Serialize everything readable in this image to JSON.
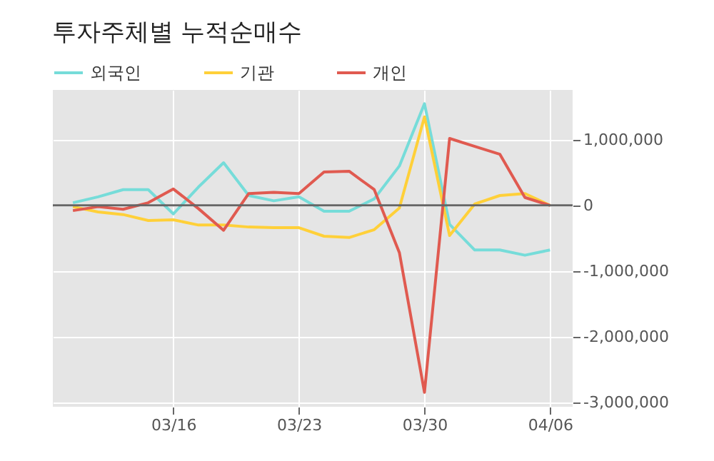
{
  "chart_data": {
    "type": "line",
    "title": "투자주체별 누적순매수",
    "categories": [
      null,
      null,
      null,
      null,
      "03/16",
      null,
      null,
      null,
      null,
      "03/23",
      null,
      null,
      null,
      null,
      "03/30",
      null,
      null,
      null,
      null,
      "04/06"
    ],
    "series": [
      {
        "name": "외국인",
        "color": "#76dcd9",
        "values": [
          40000,
          130000,
          240000,
          240000,
          -130000,
          280000,
          650000,
          150000,
          70000,
          130000,
          -90000,
          -90000,
          100000,
          600000,
          1550000,
          -290000,
          -680000,
          -680000,
          -760000,
          -680000
        ]
      },
      {
        "name": "기관",
        "color": "#ffd039",
        "values": [
          -20000,
          -100000,
          -140000,
          -230000,
          -220000,
          -300000,
          -300000,
          -330000,
          -340000,
          -340000,
          -470000,
          -490000,
          -370000,
          -40000,
          1350000,
          -460000,
          20000,
          150000,
          180000,
          0
        ]
      },
      {
        "name": "개인",
        "color": "#e05a50",
        "values": [
          -80000,
          -20000,
          -60000,
          40000,
          250000,
          -50000,
          -380000,
          180000,
          200000,
          180000,
          510000,
          520000,
          240000,
          -720000,
          -2850000,
          1020000,
          900000,
          780000,
          120000,
          0
        ]
      }
    ],
    "ylim": [
      -3070000,
      1760000
    ],
    "yticks": [
      {
        "value": 1000000,
        "label": "1,000,000"
      },
      0,
      {
        "value": -1000000,
        "label": "-1,000,000"
      },
      {
        "value": -2000000,
        "label": "-2,000,000"
      },
      {
        "value": -3000000,
        "label": "-3,000,000"
      }
    ],
    "ref_lines": [
      {
        "axis": "y",
        "value": 0,
        "color": "#666666"
      }
    ],
    "grid": true,
    "legend": "top",
    "marker": "none",
    "line_style": "solid"
  }
}
